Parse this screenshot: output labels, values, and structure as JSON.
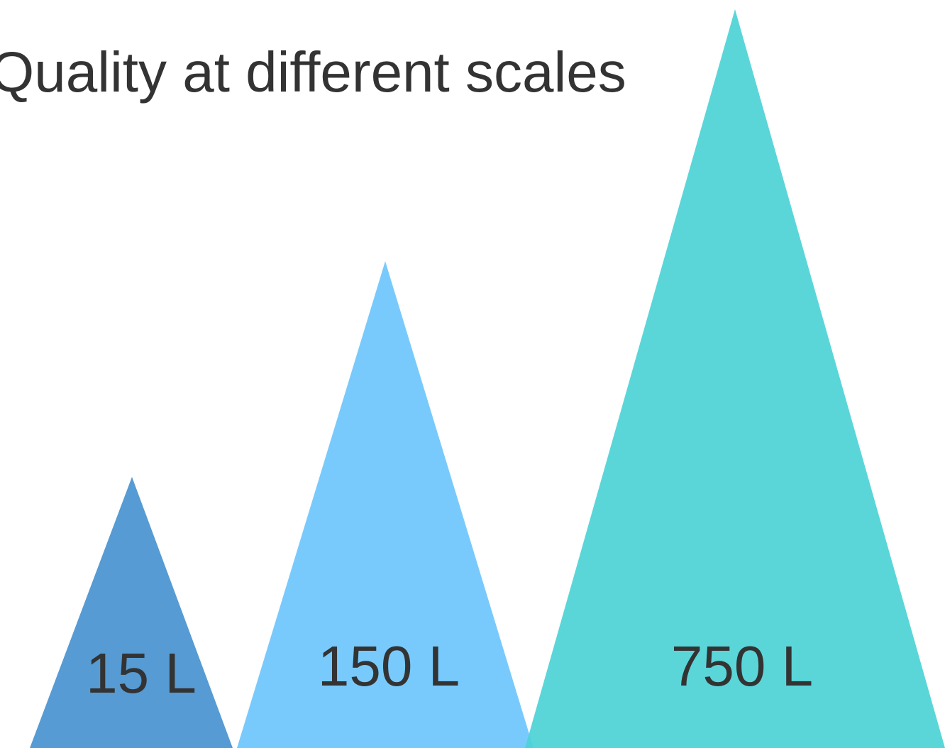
{
  "title": "Quality at different scales",
  "triangles": [
    {
      "label": "15 L",
      "color": "#4D96D1"
    },
    {
      "label": "150 L",
      "color": "#6EC5FC"
    },
    {
      "label": "750 L",
      "color": "#4CD3D6"
    }
  ]
}
